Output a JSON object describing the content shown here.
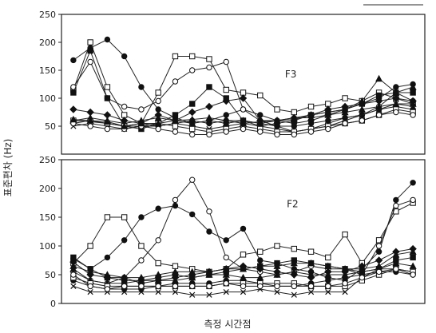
{
  "chart_data": {
    "type": "line",
    "ylabel": "표준편차 (Hz)",
    "xlabel": "측정 시간점",
    "x": [
      1,
      2,
      3,
      4,
      5,
      6,
      7,
      8,
      9,
      10,
      11,
      12,
      13,
      14,
      15,
      16,
      17,
      18,
      19,
      20,
      21
    ],
    "panels": [
      {
        "label": "F3",
        "ylim": [
          0,
          250
        ],
        "yticks": [
          50,
          100,
          150,
          200,
          250
        ],
        "series": [
          {
            "marker": "circle-filled",
            "values": [
              168,
              190,
              205,
              175,
              120,
              80,
              65,
              55,
              60,
              70,
              80,
              70,
              60,
              55,
              60,
              70,
              80,
              90,
              100,
              120,
              125
            ]
          },
          {
            "marker": "square-open",
            "values": [
              115,
              200,
              120,
              70,
              55,
              110,
              175,
              175,
              170,
              115,
              110,
              105,
              80,
              75,
              85,
              90,
              100,
              95,
              110,
              100,
              90
            ]
          },
          {
            "marker": "circle-open",
            "values": [
              120,
              165,
              100,
              85,
              80,
              95,
              130,
              150,
              155,
              165,
              80,
              60,
              50,
              40,
              45,
              55,
              65,
              70,
              85,
              110,
              95
            ]
          },
          {
            "marker": "square-filled",
            "values": [
              110,
              185,
              100,
              50,
              45,
              55,
              70,
              90,
              120,
              100,
              60,
              50,
              55,
              60,
              70,
              75,
              80,
              90,
              105,
              110,
              110
            ]
          },
          {
            "marker": "diamond-filled",
            "values": [
              80,
              75,
              70,
              60,
              55,
              70,
              60,
              75,
              85,
              95,
              100,
              60,
              60,
              65,
              70,
              80,
              85,
              90,
              95,
              100,
              95
            ]
          },
          {
            "marker": "triangle-filled",
            "values": [
              60,
              65,
              60,
              55,
              60,
              65,
              60,
              55,
              60,
              55,
              60,
              55,
              60,
              65,
              65,
              70,
              75,
              80,
              85,
              90,
              90
            ]
          },
          {
            "marker": "circle-filled",
            "values": [
              55,
              60,
              55,
              50,
              55,
              50,
              55,
              60,
              55,
              60,
              60,
              55,
              50,
              50,
              55,
              60,
              65,
              70,
              80,
              85,
              80
            ]
          },
          {
            "marker": "cross",
            "values": [
              50,
              55,
              50,
              45,
              50,
              50,
              55,
              50,
              45,
              50,
              55,
              50,
              45,
              40,
              45,
              50,
              60,
              70,
              80,
              90,
              85
            ]
          },
          {
            "marker": "square-open",
            "values": [
              60,
              58,
              55,
              50,
              50,
              55,
              50,
              45,
              40,
              45,
              50,
              45,
              40,
              40,
              45,
              50,
              55,
              60,
              70,
              80,
              75
            ]
          },
          {
            "marker": "circle-open",
            "values": [
              55,
              50,
              45,
              45,
              50,
              45,
              40,
              35,
              35,
              40,
              45,
              40,
              35,
              35,
              40,
              45,
              55,
              60,
              70,
              75,
              70
            ]
          },
          {
            "marker": "triangle-filled",
            "values": [
              62,
              60,
              58,
              50,
              55,
              55,
              60,
              62,
              65,
              60,
              55,
              58,
              60,
              62,
              70,
              75,
              80,
              95,
              135,
              110,
              120
            ]
          }
        ]
      },
      {
        "label": "F2",
        "ylim": [
          0,
          250
        ],
        "yticks": [
          0,
          50,
          100,
          150,
          200,
          250
        ],
        "series": [
          {
            "marker": "circle-filled",
            "values": [
              78,
              60,
              80,
              110,
              150,
              165,
              170,
              155,
              125,
              110,
              130,
              75,
              70,
              60,
              55,
              45,
              40,
              60,
              90,
              180,
              210
            ]
          },
          {
            "marker": "square-open",
            "values": [
              70,
              100,
              150,
              150,
              100,
              70,
              65,
              60,
              55,
              60,
              85,
              90,
              100,
              95,
              90,
              80,
              120,
              70,
              110,
              160,
              175
            ]
          },
          {
            "marker": "circle-open",
            "values": [
              55,
              40,
              35,
              45,
              75,
              110,
              180,
              215,
              160,
              80,
              60,
              55,
              50,
              55,
              65,
              60,
              60,
              50,
              100,
              170,
              180
            ]
          },
          {
            "marker": "square-filled",
            "values": [
              80,
              60,
              45,
              40,
              40,
              45,
              50,
              45,
              50,
              55,
              60,
              65,
              70,
              75,
              70,
              65,
              60,
              55,
              60,
              75,
              80
            ]
          },
          {
            "marker": "diamond-filled",
            "values": [
              72,
              50,
              45,
              45,
              35,
              40,
              45,
              50,
              55,
              60,
              65,
              60,
              55,
              50,
              45,
              55,
              55,
              65,
              75,
              90,
              95
            ]
          },
          {
            "marker": "triangle-filled",
            "values": [
              60,
              40,
              35,
              35,
              40,
              40,
              40,
              45,
              50,
              50,
              45,
              45,
              50,
              55,
              50,
              50,
              50,
              55,
              60,
              70,
              65
            ]
          },
          {
            "marker": "circle-filled",
            "values": [
              40,
              30,
              25,
              25,
              25,
              30,
              35,
              35,
              35,
              40,
              40,
              35,
              30,
              30,
              35,
              40,
              45,
              50,
              55,
              55,
              50
            ]
          },
          {
            "marker": "cross",
            "values": [
              30,
              20,
              20,
              20,
              20,
              20,
              20,
              15,
              15,
              20,
              20,
              25,
              20,
              15,
              20,
              20,
              20,
              45,
              60,
              60,
              55
            ]
          },
          {
            "marker": "square-open",
            "values": [
              45,
              35,
              30,
              30,
              30,
              30,
              30,
              30,
              30,
              35,
              35,
              35,
              35,
              35,
              30,
              30,
              30,
              40,
              50,
              60,
              55
            ]
          },
          {
            "marker": "circle-open",
            "values": [
              50,
              30,
              25,
              30,
              30,
              30,
              30,
              30,
              30,
              35,
              30,
              30,
              30,
              30,
              30,
              30,
              35,
              45,
              55,
              60,
              50
            ]
          },
          {
            "marker": "triangle-filled",
            "values": [
              65,
              55,
              50,
              45,
              45,
              50,
              55,
              55,
              55,
              60,
              60,
              65,
              65,
              70,
              70,
              65,
              60,
              60,
              65,
              85,
              90
            ]
          }
        ]
      }
    ]
  }
}
